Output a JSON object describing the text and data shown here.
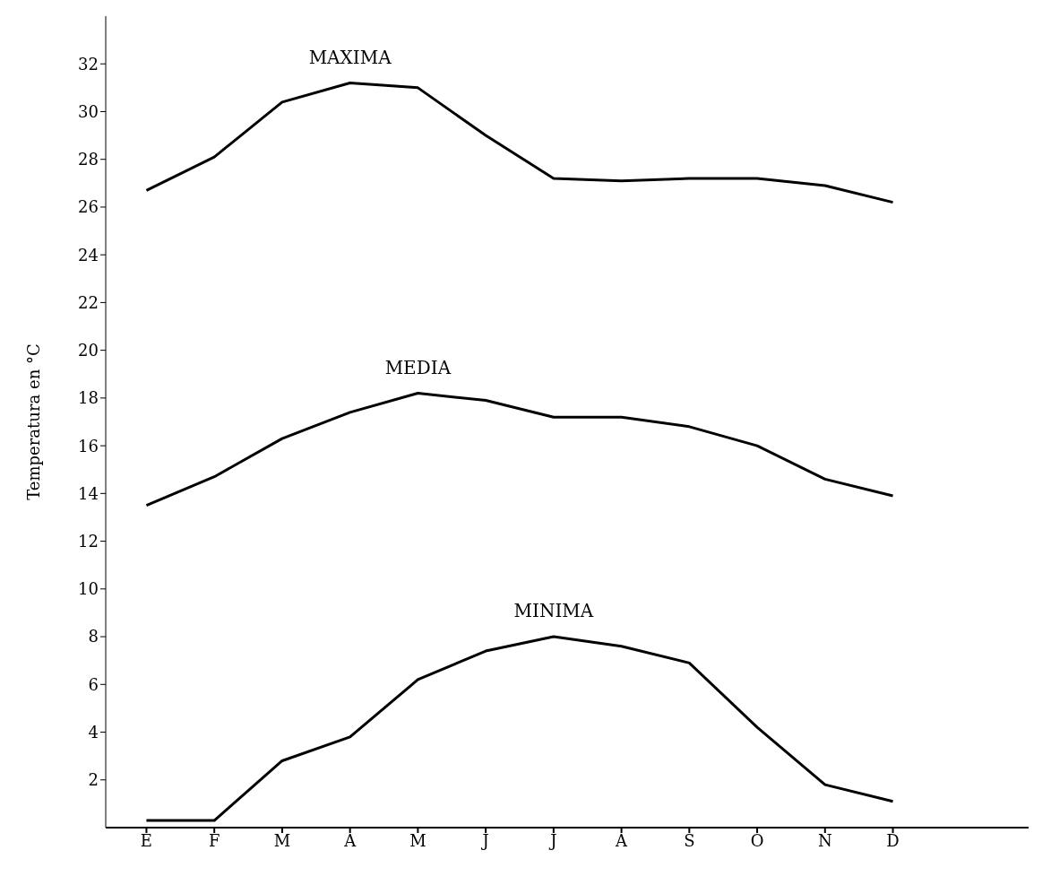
{
  "chart_data": {
    "type": "line",
    "ylabel": "Temperatura en °C",
    "categories": [
      "E",
      "F",
      "M",
      "A",
      "M",
      "J",
      "J",
      "A",
      "S",
      "O",
      "N",
      "D"
    ],
    "series": [
      {
        "name": "MAXIMA",
        "color": "#000000",
        "values": [
          26.7,
          28.1,
          30.4,
          31.2,
          31.0,
          29.0,
          27.2,
          27.1,
          27.2,
          27.2,
          26.9,
          26.2
        ]
      },
      {
        "name": "MEDIA",
        "color": "#000000",
        "values": [
          13.5,
          14.7,
          16.3,
          17.4,
          18.2,
          17.9,
          17.2,
          17.2,
          16.8,
          16.0,
          14.6,
          13.9
        ]
      },
      {
        "name": "MINIMA",
        "color": "#000000",
        "values": [
          0.3,
          0.3,
          2.8,
          3.8,
          6.2,
          7.4,
          8.0,
          7.6,
          6.9,
          4.2,
          1.8,
          1.1
        ]
      }
    ],
    "ylim": [
      0,
      34
    ],
    "yticks": [
      2,
      4,
      6,
      8,
      10,
      12,
      14,
      16,
      18,
      20,
      22,
      24,
      26,
      28,
      30,
      32
    ],
    "grid": false,
    "legend": false,
    "marker": "none",
    "line_style": "solid"
  }
}
